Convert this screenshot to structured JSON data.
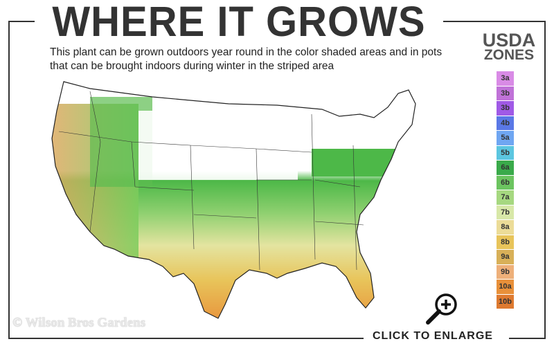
{
  "header": {
    "title": "WHERE IT GROWS",
    "subtitle": "This plant can be grown outdoors year round in the color shaded areas and in pots that can be brought indoors during winter in the striped area"
  },
  "legend": {
    "title_line1": "USDA",
    "title_line2": "ZONES",
    "zones": [
      {
        "label": "3a",
        "color": "#d98be6"
      },
      {
        "label": "3b",
        "color": "#c072d8"
      },
      {
        "label": "3b",
        "color": "#a05ae6"
      },
      {
        "label": "4b",
        "color": "#5a78e6"
      },
      {
        "label": "5a",
        "color": "#6fa6f2"
      },
      {
        "label": "5b",
        "color": "#5cc6e0"
      },
      {
        "label": "6a",
        "color": "#3aaa4a"
      },
      {
        "label": "6b",
        "color": "#6cc460"
      },
      {
        "label": "7a",
        "color": "#a6d880"
      },
      {
        "label": "7b",
        "color": "#d8e8a8"
      },
      {
        "label": "8a",
        "color": "#ecdc98"
      },
      {
        "label": "8b",
        "color": "#e8c45a"
      },
      {
        "label": "9a",
        "color": "#d8b058"
      },
      {
        "label": "9b",
        "color": "#eeb07a"
      },
      {
        "label": "10a",
        "color": "#e8903a"
      },
      {
        "label": "10b",
        "color": "#de7a30"
      }
    ]
  },
  "footer": {
    "copyright": "© Wilson Bros Gardens",
    "enlarge_label": "CLICK TO ENLARGE"
  },
  "icons": {
    "enlarge": "magnifier-plus-icon"
  }
}
